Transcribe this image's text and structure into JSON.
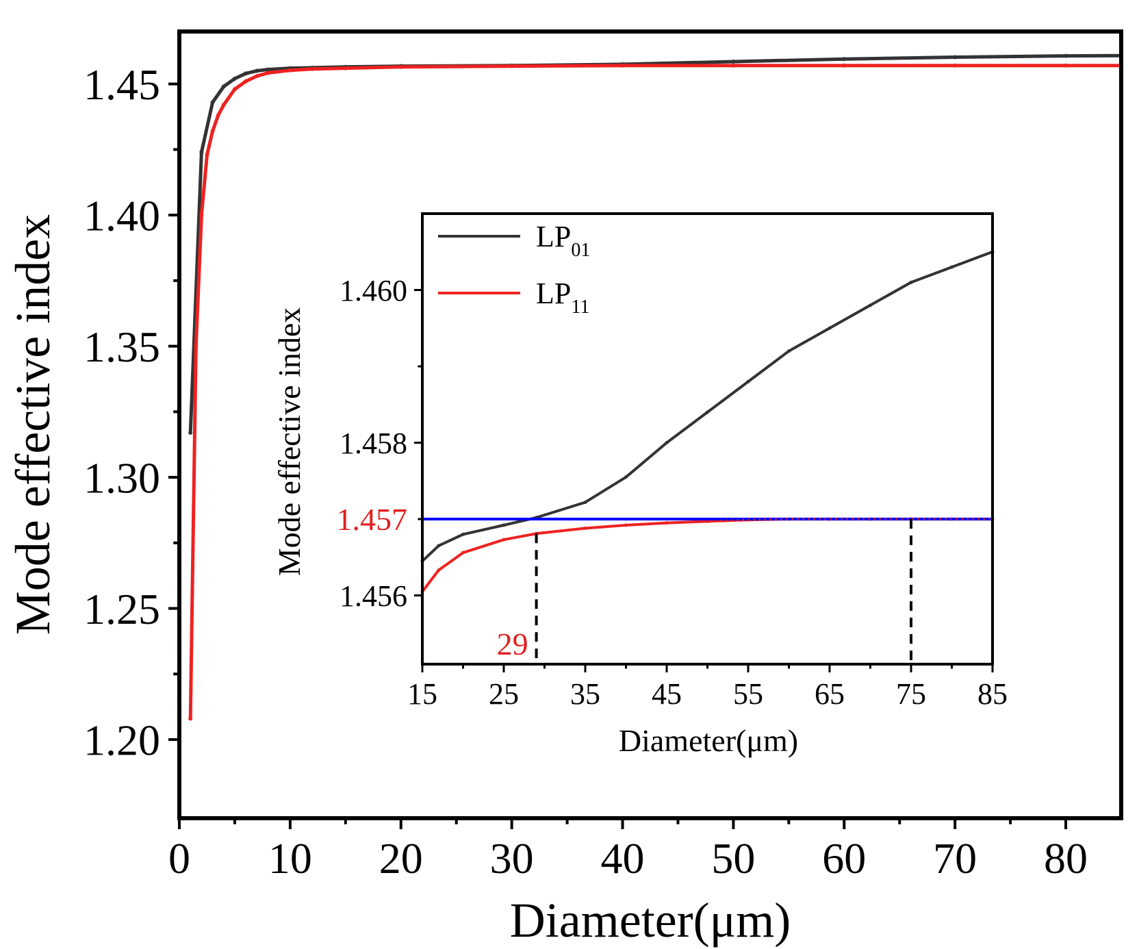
{
  "colors": {
    "lp01": "#333333",
    "lp11": "#ee2222",
    "reference": "#0000ff",
    "highlight": "#e02020",
    "axis": "#000000"
  },
  "chart_data": [
    {
      "id": "main",
      "type": "line",
      "xlabel": "Diameter(μm)",
      "ylabel": "Mode effective index",
      "xlim": [
        0,
        85
      ],
      "ylim": [
        1.17,
        1.47
      ],
      "xticks": [
        0,
        10,
        20,
        30,
        40,
        50,
        60,
        70,
        80
      ],
      "yticks": [
        1.2,
        1.25,
        1.3,
        1.35,
        1.4,
        1.45
      ],
      "series": [
        {
          "name": "LP01",
          "x": [
            1,
            2,
            3,
            4,
            5,
            6,
            7,
            8,
            10,
            12,
            15,
            20,
            30,
            40,
            50,
            60,
            70,
            80,
            85
          ],
          "y": [
            1.317,
            1.424,
            1.443,
            1.449,
            1.452,
            1.454,
            1.455,
            1.4555,
            1.456,
            1.4562,
            1.4565,
            1.4568,
            1.457,
            1.4575,
            1.4585,
            1.4595,
            1.4602,
            1.4607,
            1.4608
          ]
        },
        {
          "name": "LP11",
          "x": [
            1,
            1.5,
            2,
            2.5,
            3,
            3.5,
            4,
            5,
            6,
            7,
            8,
            10,
            12,
            15,
            20,
            30,
            40,
            50,
            60,
            70,
            80,
            85
          ],
          "y": [
            1.208,
            1.35,
            1.4,
            1.423,
            1.432,
            1.438,
            1.442,
            1.448,
            1.451,
            1.453,
            1.4542,
            1.4552,
            1.4557,
            1.456,
            1.4565,
            1.4568,
            1.457,
            1.457,
            1.457,
            1.457,
            1.457,
            1.457
          ]
        }
      ]
    },
    {
      "id": "inset",
      "type": "line",
      "xlabel": "Diameter(μm)",
      "ylabel": "Mode effective index",
      "xlim": [
        15,
        85
      ],
      "ylim": [
        1.4551,
        1.461
      ],
      "xticks": [
        15,
        25,
        35,
        45,
        55,
        65,
        75,
        85
      ],
      "yticks": [
        "1.456",
        "1.458",
        "1.460"
      ],
      "minor_yticks": [
        1.457,
        1.459
      ],
      "legend": {
        "placement": "top-left",
        "entries": [
          {
            "base": "LP",
            "sub": "01"
          },
          {
            "base": "LP",
            "sub": "11"
          }
        ]
      },
      "series": [
        {
          "name": "LP01",
          "x": [
            15,
            17,
            20,
            25,
            29,
            35,
            40,
            45,
            50,
            55,
            60,
            65,
            70,
            75,
            80,
            85
          ],
          "y": [
            1.45645,
            1.45665,
            1.4568,
            1.45692,
            1.45702,
            1.45722,
            1.45755,
            1.458,
            1.4584,
            1.4588,
            1.4592,
            1.4595,
            1.4598,
            1.4601,
            1.4603,
            1.4605
          ]
        },
        {
          "name": "LP11",
          "x": [
            15,
            17,
            20,
            25,
            29,
            35,
            40,
            45,
            50,
            55,
            60,
            65,
            70,
            75,
            80,
            85
          ],
          "y": [
            1.45605,
            1.45633,
            1.45656,
            1.45673,
            1.45681,
            1.45688,
            1.45692,
            1.45695,
            1.45697,
            1.45699,
            1.457,
            1.457,
            1.457,
            1.457,
            1.457,
            1.457
          ]
        }
      ],
      "reference_line": {
        "y": 1.457,
        "label": "1.457"
      },
      "markers": [
        {
          "x": 29,
          "label": "29"
        },
        {
          "x": 75
        }
      ]
    }
  ]
}
